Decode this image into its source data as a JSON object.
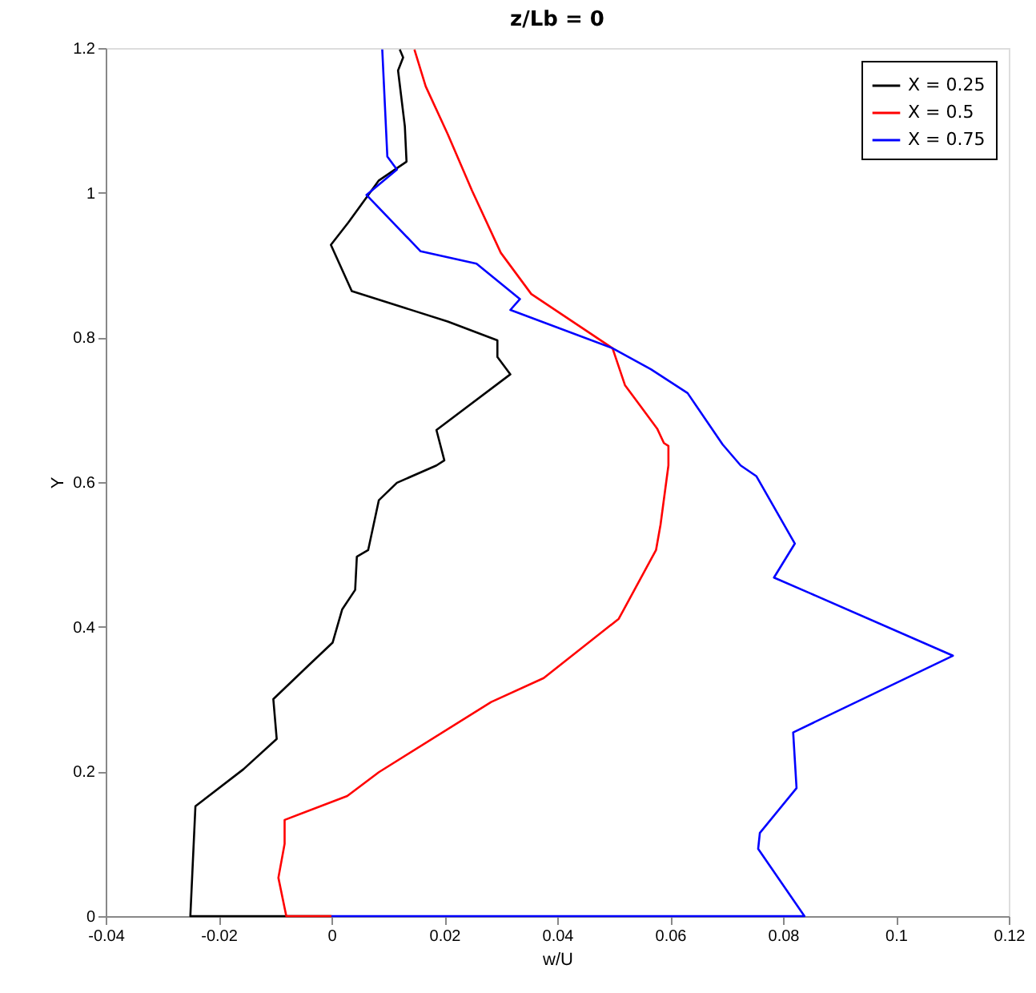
{
  "chart_data": {
    "type": "line",
    "title": "z/Lb = 0",
    "xlabel": "w/U",
    "ylabel": "Y",
    "xlim": [
      -0.04,
      0.12
    ],
    "xticks": [
      -0.04,
      -0.02,
      0,
      0.02,
      0.04,
      0.06,
      0.08,
      0.1,
      0.12
    ],
    "ylim": [
      0,
      1.2
    ],
    "yticks": [
      0,
      0.2,
      0.4,
      0.6,
      0.8,
      1,
      1.2
    ],
    "grid": false,
    "legend": "top right",
    "marker": "none",
    "line_style": "solid",
    "series": [
      {
        "name": "X = 0.25",
        "color": "#000000",
        "x": [
          0,
          -0.025,
          -0.0241,
          -0.0156,
          -0.0097,
          -0.0103,
          -0.004,
          0.0002,
          0.0019,
          0.0042,
          0.0045,
          0.0065,
          0.0084,
          0.0116,
          0.0186,
          0.02,
          0.0186,
          0.0317,
          0.0294,
          0.0294,
          0.0206,
          0.0036,
          -0.0001,
          0.003,
          0.0084,
          0.0133,
          0.013,
          0.0118,
          0.0127,
          0.0121
        ],
        "values": [
          0,
          0,
          0.152,
          0.203,
          0.245,
          0.3,
          0.347,
          0.378,
          0.424,
          0.451,
          0.497,
          0.506,
          0.575,
          0.599,
          0.623,
          0.63,
          0.672,
          0.749,
          0.773,
          0.796,
          0.822,
          0.864,
          0.928,
          0.959,
          1.017,
          1.043,
          1.092,
          1.169,
          1.187,
          1.198
        ]
      },
      {
        "name": "X = 0.5",
        "color": "#ff0000",
        "x": [
          0,
          -0.008,
          -0.0094,
          -0.0083,
          -0.0083,
          0.0028,
          0.0084,
          0.0283,
          0.0376,
          0.0509,
          0.0575,
          0.0583,
          0.0597,
          0.0597,
          0.0589,
          0.0577,
          0.052,
          0.0498,
          0.0354,
          0.03,
          0.0249,
          0.0206,
          0.0167,
          0.0147
        ],
        "values": [
          0,
          0,
          0.053,
          0.1,
          0.133,
          0.166,
          0.199,
          0.296,
          0.329,
          0.411,
          0.506,
          0.541,
          0.623,
          0.65,
          0.654,
          0.674,
          0.734,
          0.785,
          0.86,
          0.917,
          1.003,
          1.081,
          1.147,
          1.198
        ]
      },
      {
        "name": "X = 0.75",
        "color": "#0000ff",
        "x": [
          0,
          0.0838,
          0.0756,
          0.0759,
          0.0824,
          0.0818,
          0.1101,
          0.0849,
          0.0784,
          0.0821,
          0.0753,
          0.0725,
          0.0693,
          0.0631,
          0.0566,
          0.0498,
          0.0317,
          0.0334,
          0.0257,
          0.0158,
          0.0062,
          0.0116,
          0.0099,
          0.009
        ],
        "values": [
          0,
          0,
          0.093,
          0.115,
          0.177,
          0.254,
          0.36,
          0.446,
          0.468,
          0.515,
          0.608,
          0.623,
          0.652,
          0.723,
          0.756,
          0.785,
          0.838,
          0.853,
          0.902,
          0.919,
          0.997,
          1.032,
          1.05,
          1.198
        ]
      }
    ]
  }
}
